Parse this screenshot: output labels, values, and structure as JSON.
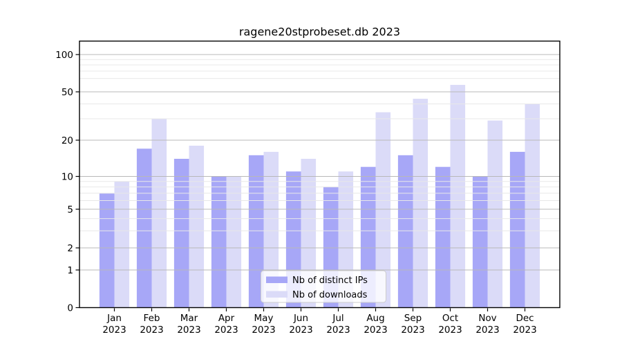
{
  "chart_data": {
    "type": "bar",
    "title": "ragene20stprobeset.db 2023",
    "categories": [
      "Jan 2023",
      "Feb 2023",
      "Mar 2023",
      "Apr 2023",
      "May 2023",
      "Jun 2023",
      "Jul 2023",
      "Aug 2023",
      "Sep 2023",
      "Oct 2023",
      "Nov 2023",
      "Dec 2023"
    ],
    "series": [
      {
        "name": "Nb of distinct IPs",
        "color": "#a7a7f7",
        "values": [
          7,
          17,
          14,
          10,
          15,
          11,
          8,
          12,
          15,
          12,
          10,
          16
        ]
      },
      {
        "name": "Nb of downloads",
        "color": "#dbdbf8",
        "values": [
          9,
          30,
          18,
          10,
          16,
          14,
          11,
          34,
          44,
          55,
          29,
          40
        ]
      }
    ],
    "y_axis": {
      "scale": "symlog",
      "ticks": [
        0,
        1,
        2,
        5,
        10,
        20,
        50,
        100
      ],
      "minor_ticks": [
        3,
        4,
        6,
        7,
        8,
        9,
        30,
        40,
        60,
        70,
        80,
        90
      ],
      "range": [
        0,
        100
      ]
    },
    "x_axis": {
      "label": "",
      "year": "2023"
    },
    "legend": {
      "position": "bottom-center"
    },
    "style": {
      "background": "#ffffff",
      "grid_major": "#b8b8b8",
      "grid_minor": "#e8e8e8",
      "axis_color": "#000000",
      "legend_border": "#cccccc",
      "legend_fill": "rgba(255,255,255,0.8)"
    }
  }
}
